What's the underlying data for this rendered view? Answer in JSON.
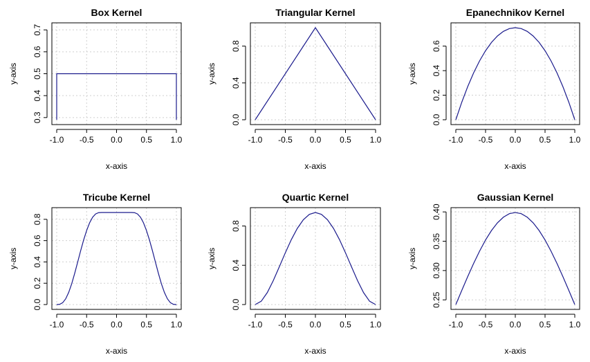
{
  "chart_data": [
    {
      "type": "line",
      "title": "Box Kernel",
      "xlabel": "x-axis",
      "ylabel": "y-axis",
      "xlim": [
        -1.0,
        1.0
      ],
      "ylim": [
        0.29,
        0.71
      ],
      "xticks": [
        "-1.0",
        "-0.5",
        "0.0",
        "0.5",
        "1.0"
      ],
      "yticks": [
        "0.3",
        "0.4",
        "0.5",
        "0.6",
        "0.7"
      ],
      "grid": true,
      "color": "#1a1a8c",
      "series": [
        {
          "x": [
            -1.0,
            -1.0,
            1.0,
            1.0
          ],
          "y": [
            0.29,
            0.5,
            0.5,
            0.29
          ]
        }
      ]
    },
    {
      "type": "line",
      "title": "Triangular Kernel",
      "xlabel": "x-axis",
      "ylabel": "y-axis",
      "xlim": [
        -1.0,
        1.0
      ],
      "ylim": [
        0.0,
        1.0
      ],
      "xticks": [
        "-1.0",
        "-0.5",
        "0.0",
        "0.5",
        "1.0"
      ],
      "yticks": [
        "0.0",
        "0.4",
        "0.8"
      ],
      "grid": true,
      "color": "#1a1a8c",
      "series": [
        {
          "x": [
            -1.0,
            0.0,
            1.0
          ],
          "y": [
            0.0,
            1.0,
            0.0
          ]
        }
      ]
    },
    {
      "type": "line",
      "title": "Epanechnikov Kernel",
      "xlabel": "x-axis",
      "ylabel": "y-axis",
      "xlim": [
        -1.0,
        1.0
      ],
      "ylim": [
        0.0,
        0.75
      ],
      "xticks": [
        "-1.0",
        "-0.5",
        "0.0",
        "0.5",
        "1.0"
      ],
      "yticks": [
        "0.0",
        "0.2",
        "0.4",
        "0.6"
      ],
      "grid": true,
      "color": "#1a1a8c",
      "series": [
        {
          "x": [
            -1.0,
            -0.9,
            -0.8,
            -0.7,
            -0.6,
            -0.5,
            -0.4,
            -0.3,
            -0.2,
            -0.1,
            0.0,
            0.1,
            0.2,
            0.3,
            0.4,
            0.5,
            0.6,
            0.7,
            0.8,
            0.9,
            1.0
          ],
          "y": [
            0.0,
            0.1425,
            0.27,
            0.3825,
            0.48,
            0.5625,
            0.63,
            0.6825,
            0.72,
            0.7425,
            0.75,
            0.7425,
            0.72,
            0.6825,
            0.63,
            0.5625,
            0.48,
            0.3825,
            0.27,
            0.1425,
            0.0
          ]
        }
      ]
    },
    {
      "type": "line",
      "title": "Tricube Kernel",
      "xlabel": "x-axis",
      "ylabel": "y-axis",
      "xlim": [
        -1.0,
        1.0
      ],
      "ylim": [
        0.0,
        0.864
      ],
      "xticks": [
        "-1.0",
        "-0.5",
        "0.0",
        "0.5",
        "1.0"
      ],
      "yticks": [
        "0.0",
        "0.2",
        "0.4",
        "0.6",
        "0.8"
      ],
      "grid": true,
      "color": "#1a1a8c",
      "series": [
        {
          "x": [
            -1.0,
            -0.95,
            -0.9,
            -0.85,
            -0.8,
            -0.75,
            -0.7,
            -0.65,
            -0.6,
            -0.55,
            -0.5,
            -0.45,
            -0.4,
            -0.35,
            -0.3,
            -0.25,
            -0.2,
            -0.15,
            -0.1,
            -0.05,
            0.0,
            0.05,
            0.1,
            0.15,
            0.2,
            0.25,
            0.3,
            0.35,
            0.4,
            0.45,
            0.5,
            0.55,
            0.6,
            0.65,
            0.7,
            0.75,
            0.8,
            0.85,
            0.9,
            0.95,
            1.0
          ],
          "y": [
            0.0,
            0.0023,
            0.0175,
            0.0537,
            0.1134,
            0.1946,
            0.2918,
            0.3978,
            0.5049,
            0.606,
            0.6948,
            0.7674,
            0.8193,
            0.8504,
            0.8626,
            0.8638,
            0.864,
            0.864,
            0.864,
            0.864,
            0.864,
            0.864,
            0.864,
            0.864,
            0.864,
            0.8638,
            0.8626,
            0.8504,
            0.8193,
            0.7674,
            0.6948,
            0.606,
            0.5049,
            0.3978,
            0.2918,
            0.1946,
            0.1134,
            0.0537,
            0.0175,
            0.0023,
            0.0
          ]
        }
      ]
    },
    {
      "type": "line",
      "title": "Quartic Kernel",
      "xlabel": "x-axis",
      "ylabel": "y-axis",
      "xlim": [
        -1.0,
        1.0
      ],
      "ylim": [
        0.0,
        0.9375
      ],
      "xticks": [
        "-1.0",
        "-0.5",
        "0.0",
        "0.5",
        "1.0"
      ],
      "yticks": [
        "0.0",
        "0.4",
        "0.8"
      ],
      "grid": true,
      "color": "#1a1a8c",
      "series": [
        {
          "x": [
            -1.0,
            -0.9,
            -0.8,
            -0.7,
            -0.6,
            -0.5,
            -0.4,
            -0.3,
            -0.2,
            -0.1,
            0.0,
            0.1,
            0.2,
            0.3,
            0.4,
            0.5,
            0.6,
            0.7,
            0.8,
            0.9,
            1.0
          ],
          "y": [
            0.0,
            0.0338,
            0.1215,
            0.2438,
            0.384,
            0.5273,
            0.6615,
            0.7763,
            0.864,
            0.9188,
            0.9375,
            0.9188,
            0.864,
            0.7763,
            0.6615,
            0.5273,
            0.384,
            0.2438,
            0.1215,
            0.0338,
            0.0
          ]
        }
      ]
    },
    {
      "type": "line",
      "title": "Gaussian Kernel",
      "xlabel": "x-axis",
      "ylabel": "y-axis",
      "xlim": [
        -1.0,
        1.0
      ],
      "ylim": [
        0.242,
        0.399
      ],
      "xticks": [
        "-1.0",
        "-0.5",
        "0.0",
        "0.5",
        "1.0"
      ],
      "yticks": [
        "0.25",
        "0.30",
        "0.35",
        "0.40"
      ],
      "grid": true,
      "color": "#1a1a8c",
      "series": [
        {
          "x": [
            -1.0,
            -0.9,
            -0.8,
            -0.7,
            -0.6,
            -0.5,
            -0.4,
            -0.3,
            -0.2,
            -0.1,
            0.0,
            0.1,
            0.2,
            0.3,
            0.4,
            0.5,
            0.6,
            0.7,
            0.8,
            0.9,
            1.0
          ],
          "y": [
            0.242,
            0.2661,
            0.2897,
            0.3123,
            0.3332,
            0.3521,
            0.3683,
            0.3814,
            0.391,
            0.397,
            0.3989,
            0.397,
            0.391,
            0.3814,
            0.3683,
            0.3521,
            0.3332,
            0.3123,
            0.2897,
            0.2661,
            0.242
          ]
        }
      ]
    }
  ]
}
